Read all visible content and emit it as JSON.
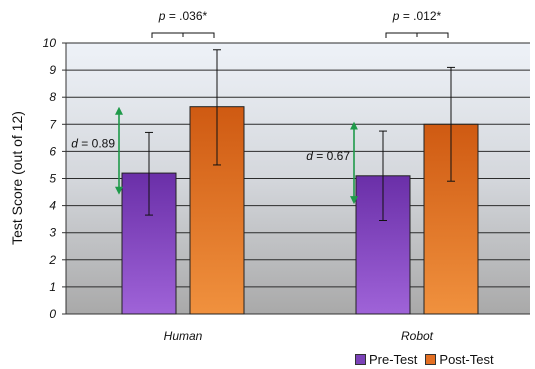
{
  "chart_data": {
    "type": "bar",
    "ylabel": "Test Score (out of 12)",
    "ylim": [
      0,
      10
    ],
    "yticks": [
      "0",
      "1",
      "2",
      "3",
      "4",
      "5",
      "6",
      "7",
      "8",
      "9",
      "10"
    ],
    "grid": true,
    "legend_position": "bottom-right",
    "categories": [
      "Human",
      "Robot"
    ],
    "series": [
      {
        "name": "Pre-Test",
        "values": [
          5.2,
          5.1
        ],
        "error_low": [
          3.65,
          3.45
        ],
        "error_high": [
          6.7,
          6.75
        ],
        "color": "#7b42b8"
      },
      {
        "name": "Post-Test",
        "values": [
          7.65,
          7.0
        ],
        "error_low": [
          5.5,
          4.9
        ],
        "error_high": [
          9.75,
          9.1
        ],
        "color": "#e36f23"
      }
    ],
    "annotations": {
      "effect_sizes": [
        {
          "prefix": "d",
          "text": " = 0.89",
          "from": 4.55,
          "to": 7.5
        },
        {
          "prefix": "d",
          "text": " = 0.67",
          "from": 4.2,
          "to": 6.95
        }
      ],
      "p_values": [
        {
          "prefix": "p",
          "text": " = .036*"
        },
        {
          "prefix": "p",
          "text": " = .012*"
        }
      ]
    },
    "colors": {
      "arrow": "#1f9a4a",
      "background_top": "#eef2f8",
      "background_bottom": "#a9a9a9"
    }
  }
}
